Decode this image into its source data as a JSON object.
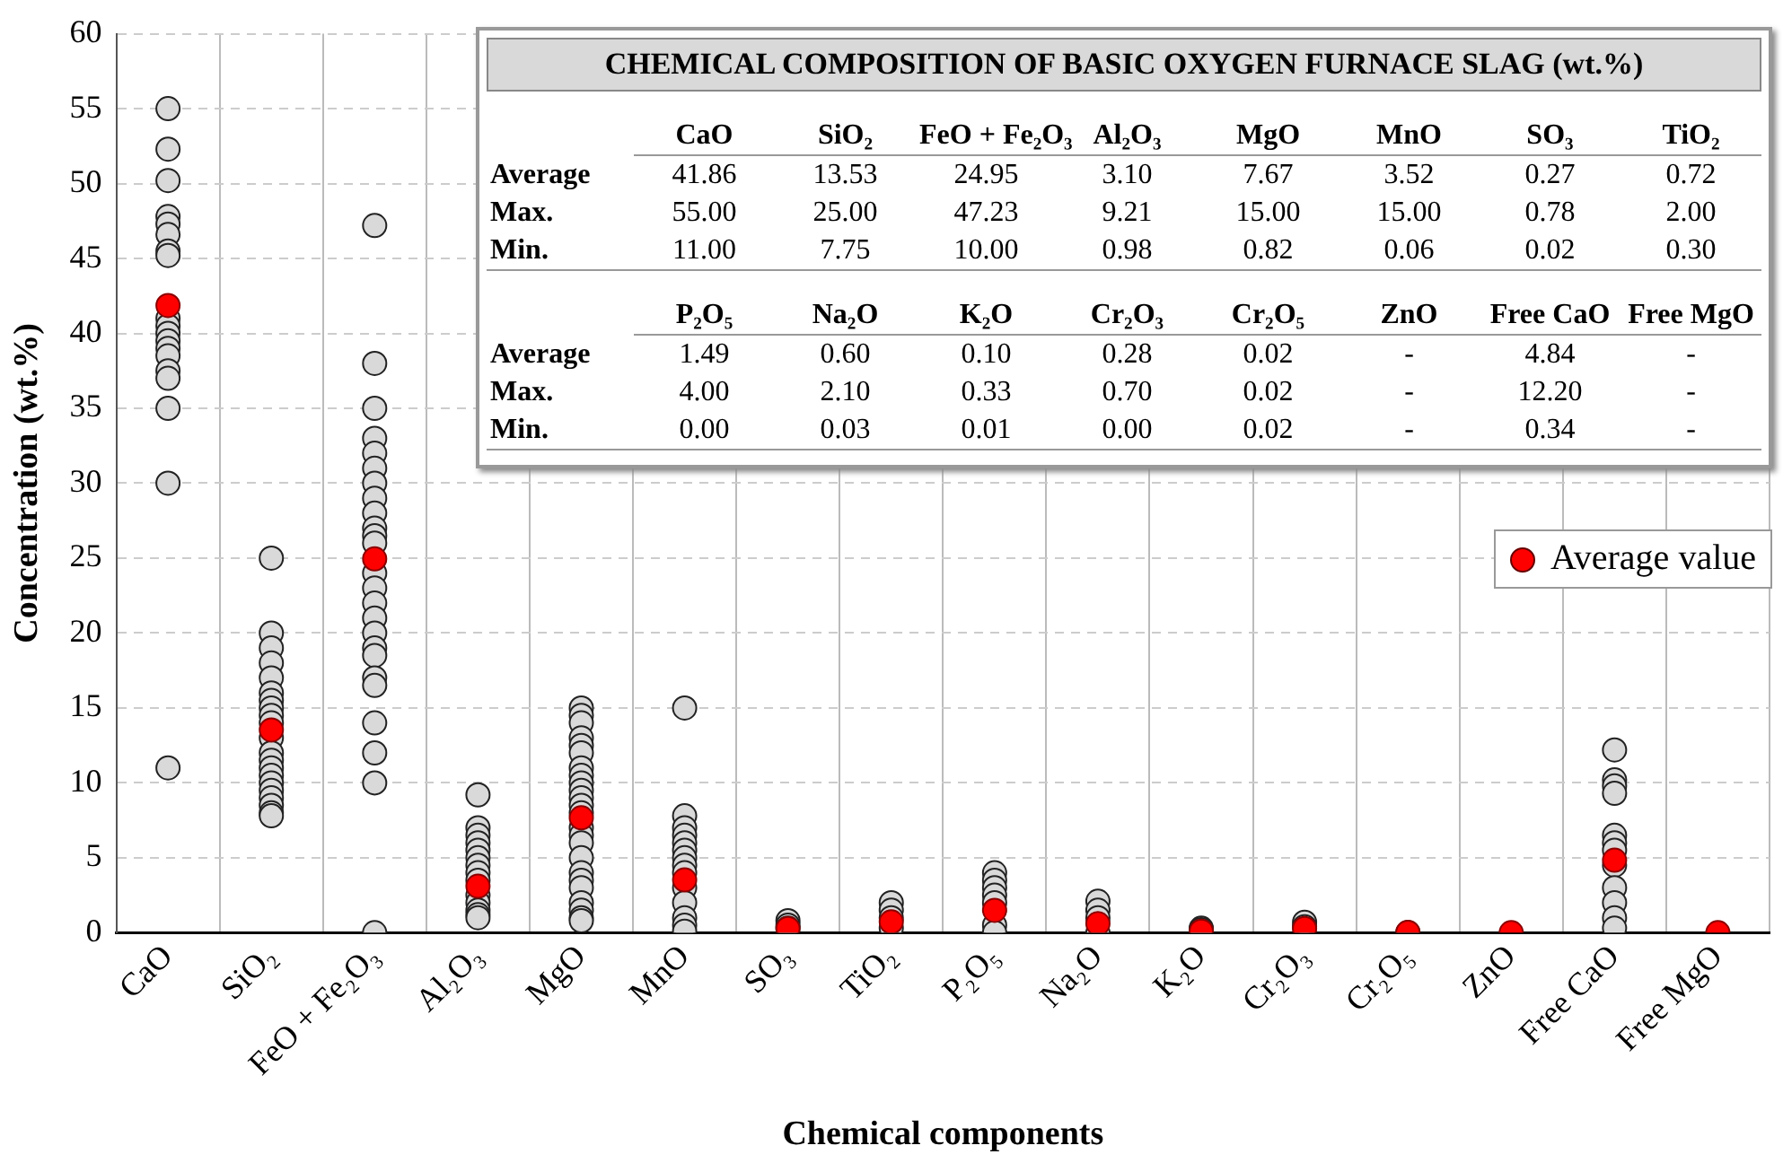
{
  "chart_data": {
    "type": "scatter",
    "xlabel": "Chemical components",
    "ylabel": "Concentration (wt.%)",
    "categories": [
      "CaO",
      "SiO₂",
      "FeO + Fe₂O₃",
      "Al₂O₃",
      "MgO",
      "MnO",
      "SO₃",
      "TiO₂",
      "P₂O₅",
      "Na₂O",
      "K₂O",
      "Cr₂O₃",
      "Cr₂O₅",
      "ZnO",
      "Free CaO",
      "Free MgO"
    ],
    "series": [
      {
        "color": "#d9d9d9",
        "x": [
          "CaO",
          "CaO",
          "CaO",
          "CaO",
          "CaO",
          "CaO",
          "CaO",
          "CaO",
          "CaO",
          "CaO",
          "CaO",
          "CaO",
          "CaO",
          "CaO",
          "CaO",
          "CaO",
          "CaO",
          "CaO",
          "CaO",
          "SiO₂",
          "SiO₂",
          "SiO₂",
          "SiO₂",
          "SiO₂",
          "SiO₂",
          "SiO₂",
          "SiO₂",
          "SiO₂",
          "SiO₂",
          "SiO₂",
          "SiO₂",
          "SiO₂",
          "SiO₂",
          "SiO₂",
          "SiO₂",
          "SiO₂",
          "SiO₂",
          "SiO₂",
          "SiO₂",
          "SiO₂",
          "FeO + Fe₂O₃",
          "FeO + Fe₂O₃",
          "FeO + Fe₂O₃",
          "FeO + Fe₂O₃",
          "FeO + Fe₂O₃",
          "FeO + Fe₂O₃",
          "FeO + Fe₂O₃",
          "FeO + Fe₂O₃",
          "FeO + Fe₂O₃",
          "FeO + Fe₂O₃",
          "FeO + Fe₂O₃",
          "FeO + Fe₂O₃",
          "FeO + Fe₂O₃",
          "FeO + Fe₂O₃",
          "FeO + Fe₂O₃",
          "FeO + Fe₂O₃",
          "FeO + Fe₂O₃",
          "FeO + Fe₂O₃",
          "FeO + Fe₂O₃",
          "FeO + Fe₂O₃",
          "FeO + Fe₂O₃",
          "FeO + Fe₂O₃",
          "FeO + Fe₂O₃",
          "FeO + Fe₂O₃",
          "FeO + Fe₂O₃",
          "Al₂O₃",
          "Al₂O₃",
          "Al₂O₃",
          "Al₂O₃",
          "Al₂O₃",
          "Al₂O₃",
          "Al₂O₃",
          "Al₂O₃",
          "Al₂O₃",
          "Al₂O₃",
          "Al₂O₃",
          "Al₂O₃",
          "Al₂O₃",
          "Al₂O₃",
          "MgO",
          "MgO",
          "MgO",
          "MgO",
          "MgO",
          "MgO",
          "MgO",
          "MgO",
          "MgO",
          "MgO",
          "MgO",
          "MgO",
          "MgO",
          "MgO",
          "MgO",
          "MgO",
          "MgO",
          "MgO",
          "MgO",
          "MgO",
          "MgO",
          "MgO",
          "MgO",
          "MgO",
          "MnO",
          "MnO",
          "MnO",
          "MnO",
          "MnO",
          "MnO",
          "MnO",
          "MnO",
          "MnO",
          "MnO",
          "MnO",
          "MnO",
          "MnO",
          "MnO",
          "SO₃",
          "SO₃",
          "SO₃",
          "TiO₂",
          "TiO₂",
          "TiO₂",
          "TiO₂",
          "P₂O₅",
          "P₂O₅",
          "P₂O₅",
          "P₂O₅",
          "P₂O₅",
          "P₂O₅",
          "P₂O₅",
          "Na₂O",
          "Na₂O",
          "Na₂O",
          "Na₂O",
          "K₂O",
          "K₂O",
          "Cr₂O₃",
          "Cr₂O₃",
          "Cr₂O₅",
          "Free CaO",
          "Free CaO",
          "Free CaO",
          "Free CaO",
          "Free CaO",
          "Free CaO",
          "Free CaO",
          "Free CaO",
          "Free CaO",
          "Free CaO",
          "Free CaO",
          "Free CaO"
        ],
        "values": [
          55,
          52.3,
          50.2,
          47.8,
          47.3,
          46.6,
          45.5,
          45.2,
          41,
          40.5,
          40,
          39.5,
          39,
          38.5,
          37.5,
          37,
          35,
          30,
          11,
          25,
          20,
          19,
          18,
          17,
          16,
          15.5,
          15,
          14.5,
          14,
          13,
          12,
          11.5,
          11,
          10.5,
          10,
          9.5,
          9,
          8.5,
          8,
          7.8,
          47.2,
          38,
          35,
          33,
          32,
          31,
          30,
          29,
          28,
          27,
          26.5,
          26,
          24,
          23,
          22,
          21,
          20,
          19,
          18.5,
          17,
          16.5,
          14,
          12,
          10,
          0,
          9.2,
          7,
          6.5,
          6,
          5.5,
          5,
          4.5,
          4,
          3.5,
          2.5,
          2,
          1.5,
          1.2,
          1,
          15,
          14.5,
          14,
          13,
          12.5,
          12,
          11,
          10.5,
          10,
          9.5,
          9,
          8.5,
          8,
          7,
          6.5,
          6,
          5,
          4,
          3.5,
          3,
          2,
          1.5,
          1,
          0.8,
          15,
          7.8,
          7,
          6.5,
          6,
          5.5,
          5,
          4.5,
          4,
          3,
          2,
          1,
          0.5,
          0.1,
          0.8,
          0.5,
          0.3,
          2,
          1.5,
          1,
          0.3,
          4,
          3.5,
          3,
          2.5,
          2,
          0.5,
          0,
          2.1,
          1.5,
          1,
          0,
          0.3,
          0.2,
          0.7,
          0.4,
          0,
          12.2,
          10.2,
          9.8,
          9.3,
          6.5,
          6,
          5.5,
          4.5,
          3,
          2,
          1,
          0.3
        ]
      },
      {
        "name": "Average value",
        "color": "#ff0000",
        "values": [
          41.86,
          13.53,
          24.95,
          3.1,
          7.67,
          3.52,
          0.27,
          0.72,
          1.49,
          0.6,
          0.1,
          0.28,
          0.02,
          0,
          4.84,
          0
        ]
      }
    ],
    "ylim": [
      0,
      60
    ],
    "yticks": [
      0,
      5,
      10,
      15,
      20,
      25,
      30,
      35,
      40,
      45,
      50,
      55,
      60
    ],
    "grid": true,
    "legend": "right",
    "marker": "circle",
    "annotations": [
      "CHEMICAL COMPOSITION OF BASIC OXYGEN FURNACE SLAG (wt.%)",
      "CaO",
      "SiO₂",
      "FeO + Fe₂O₃",
      "Al₂O₃",
      "MgO",
      "MnO",
      "SO₃",
      "TiO₂",
      "Average",
      "41.86",
      "13.53",
      "24.95",
      "3.10",
      "7.67",
      "3.52",
      "0.27",
      "0.72",
      "Max.",
      "55.00",
      "25.00",
      "47.23",
      "9.21",
      "15.00",
      "15.00",
      "0.78",
      "2.00",
      "Min.",
      "11.00",
      "7.75",
      "10.00",
      "0.98",
      "0.82",
      "0.06",
      "0.02",
      "0.30",
      "P₂O₅",
      "Na₂O",
      "K₂O",
      "Cr₂O₃",
      "Cr₂O₅",
      "ZnO",
      "Free CaO",
      "Free MgO",
      "Average",
      "1.49",
      "0.60",
      "0.10",
      "0.28",
      "0.02",
      "-",
      "4.84",
      "-",
      "Max.",
      "4.00",
      "2.10",
      "0.33",
      "0.70",
      "0.02",
      "-",
      "12.20",
      "-",
      "Min.",
      "0.00",
      "0.03",
      "0.01",
      "0.00",
      "0.02",
      "-",
      "0.34",
      "-"
    ]
  }
}
